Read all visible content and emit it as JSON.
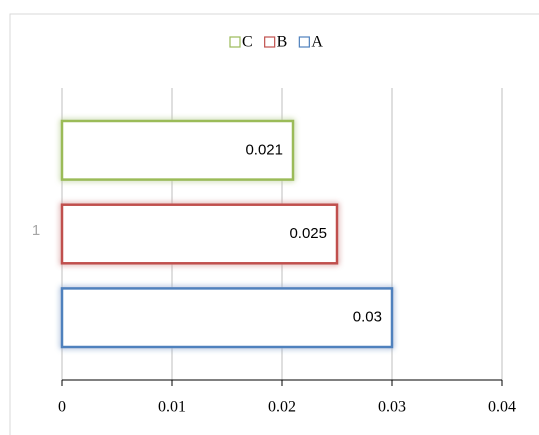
{
  "chart_data": {
    "type": "bar",
    "orientation": "horizontal",
    "categories": [
      "1"
    ],
    "series": [
      {
        "name": "A",
        "color": "#4f81bd",
        "values": [
          0.03
        ]
      },
      {
        "name": "B",
        "color": "#c0504d",
        "values": [
          0.025
        ]
      },
      {
        "name": "C",
        "color": "#9bbb59",
        "values": [
          0.021
        ]
      }
    ],
    "xlim": [
      0,
      0.04
    ],
    "xticks": [
      0,
      0.01,
      0.02,
      0.03,
      0.04
    ],
    "grid": true,
    "legend": "top"
  }
}
